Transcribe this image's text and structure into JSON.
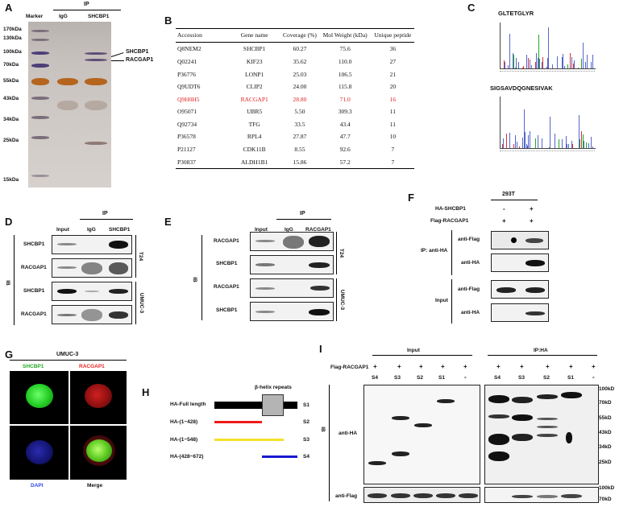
{
  "panels": {
    "a": "A",
    "b": "B",
    "c": "C",
    "d": "D",
    "e": "E",
    "f": "F",
    "g": "G",
    "h": "H",
    "i": "I"
  },
  "gel": {
    "header": "IP",
    "lane_marker": "Marker",
    "lane_igg": "IgG",
    "lane_shcbp1": "SHCBP1",
    "markers": [
      "170kDa",
      "130kDa",
      "100kDa",
      "70kDa",
      "55kDa",
      "43kDa",
      "34kDa",
      "25kDa",
      "15kDa"
    ],
    "band_label_1": "SHCBP1",
    "band_label_2": "RACGAP1"
  },
  "table": {
    "headers": [
      "Accession",
      "Gene name",
      "Coverage (%)",
      "Mol Weight (kDa)",
      "Unique peptide"
    ],
    "rows": [
      [
        "Q8NEM2",
        "SHCBP1",
        "60.27",
        "75.6",
        "36"
      ],
      [
        "Q02241",
        "KIF23",
        "35.62",
        "110.0",
        "27"
      ],
      [
        "P36776",
        "LONP1",
        "25.03",
        "106.5",
        "21"
      ],
      [
        "Q9UDT6",
        "CLIP2",
        "24.00",
        "115.8",
        "20"
      ],
      [
        "Q9H0H5",
        "RACGAP1",
        "28.80",
        "71.0",
        "16"
      ],
      [
        "O95071",
        "UBR5",
        "5.50",
        "309.3",
        "11"
      ],
      [
        "Q92734",
        "TFG",
        "33.5",
        "43.4",
        "11"
      ],
      [
        "P36578",
        "RPL4",
        "27.87",
        "47.7",
        "10"
      ],
      [
        "P21127",
        "CDK11B",
        "8.55",
        "92.6",
        "7"
      ],
      [
        "P30837",
        "ALDH1B1",
        "15.86",
        "57.2",
        "7"
      ]
    ],
    "highlight_row": 4,
    "highlight_color": "#e02020"
  },
  "spectra": {
    "peptide_1": "GLTETGLYR",
    "peptide_2": "SIGSAVDQGNESIVAK"
  },
  "panel_d": {
    "header": "IP",
    "col_input": "Input",
    "col_igg": "IgG",
    "col_ip": "SHCBP1",
    "side": "IB",
    "rows": [
      "SHCBP1",
      "RACGAP1",
      "SHCBP1",
      "RACGAP1"
    ],
    "cell_1": "T24",
    "cell_2": "UMUC-3"
  },
  "panel_e": {
    "header": "IP",
    "col_input": "Input",
    "col_igg": "IgG",
    "col_ip": "RACGAP1",
    "side": "IB",
    "rows": [
      "RACGAP1",
      "SHCBP1",
      "RACGAP1",
      "SHCBP1"
    ],
    "cell_1": "T24",
    "cell_2": "UMUC-3"
  },
  "panel_f": {
    "cell": "293T",
    "row1_label": "HA-SHCBP1",
    "row1_signs": [
      "-",
      "+"
    ],
    "row2_label": "Flag-RACGAP1",
    "row2_signs": [
      "+",
      "+"
    ],
    "ip_label": "IP: anti-HA",
    "input_label": "Input",
    "blots": [
      "anti-Flag",
      "anti-HA",
      "anti-Flag",
      "anti-HA"
    ]
  },
  "panel_g": {
    "title": "UMUC-3",
    "c1": "SHCBP1",
    "c2": "RACGAP1",
    "c3": "DAPI",
    "c4": "Merge",
    "c1_color": "#22dd22",
    "c2_color": "#ee2222",
    "c3_color": "#3344ee"
  },
  "panel_h": {
    "domain": "β-helix repeats",
    "constructs": [
      {
        "name": "HA-Full length",
        "tag": "S1",
        "color": "#000000"
      },
      {
        "name": "HA-(1~428)",
        "tag": "S2",
        "color": "#ee1c1c"
      },
      {
        "name": "HA-(1~548)",
        "tag": "S3",
        "color": "#f5e12a"
      },
      {
        "name": "HA-(428~672)",
        "tag": "S4",
        "color": "#1a1ad0"
      }
    ]
  },
  "panel_i": {
    "flag_label": "Flag-RACGAP1",
    "input_header": "Input",
    "ip_header": "IP:HA",
    "plus": "+",
    "minus": "-",
    "lanes": [
      "S4",
      "S3",
      "S2",
      "S1",
      "-"
    ],
    "ib": "IB",
    "row1": "anti-HA",
    "row2": "anti-Flag",
    "mw_top": [
      "100kD",
      "70kD",
      "55kD",
      "43kD",
      "34kD",
      "25kD"
    ],
    "mw_bottom": [
      "100kD",
      "70kD"
    ]
  }
}
